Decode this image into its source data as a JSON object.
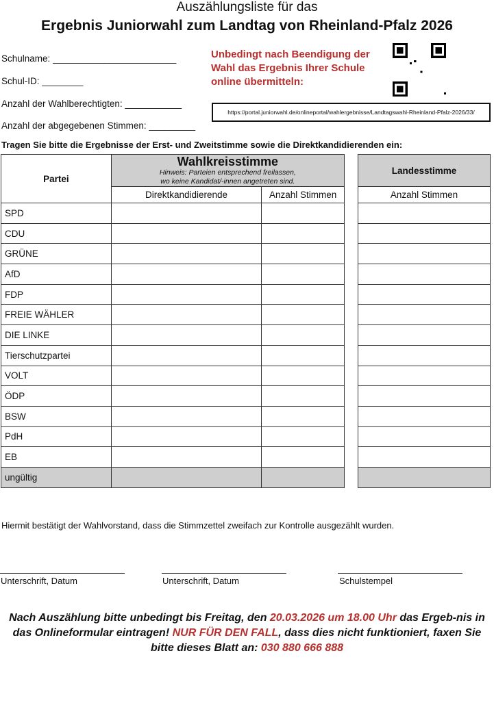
{
  "header": {
    "title_line1": "Auszählungsliste für das",
    "title_line2": "Ergebnis Juniorwahl zum Landtag von Rheinland-Pfalz 2026"
  },
  "fields": [
    {
      "label": "Schulname:",
      "blank": "________________________"
    },
    {
      "label": "Schul-ID:",
      "blank": "________"
    },
    {
      "label": "Anzahl der Wahlberechtigten:",
      "blank": "___________"
    },
    {
      "label": "Anzahl der abgegebenen Stimmen:",
      "blank": "_________"
    }
  ],
  "notice": {
    "line1": "Unbedingt nach Beendigung der",
    "line2": "Wahl das Ergebnis Ihrer Schule",
    "line3": "online übermitteln:"
  },
  "qr_icon": "qr-code",
  "url": "https://portal.juniorwahl.de/onlineportal/wahlergebnisse/Landtagswahl-Rheinland-Pfalz-2026/33/",
  "instruction": "Tragen Sie bitte die Ergebnisse der Erst- und Zweitstimme sowie die Direktkandidierenden ein:",
  "table": {
    "partei_header": "Partei",
    "wahlkreis_header": "Wahlkreisstimme",
    "hint_line1": "Hinweis: Parteien entsprechend freilassen,",
    "hint_line2": "wo keine Kandidat/-innen angetreten sind.",
    "col_direkt": "Direktkandidierende",
    "col_anzahl": "Anzahl Stimmen",
    "landes_header": "Landesstimme",
    "col_landes_anzahl": "Anzahl Stimmen",
    "parties": [
      "SPD",
      "CDU",
      "GRÜNE",
      "AfD",
      "FDP",
      "FREIE WÄHLER",
      "DIE LINKE",
      "Tierschutzpartei",
      "VOLT",
      "ÖDP",
      "BSW",
      "PdH",
      "EB",
      "ungültig"
    ],
    "gray_fill": "#cfcfcf"
  },
  "confirmation": "Hiermit bestätigt der Wahlvorstand, dass die Stimmzettel zweifach zur Kontrolle ausgezählt wurden.",
  "signatures": [
    "Unterschrift, Datum",
    "Unterschrift, Datum",
    "Schulstempel"
  ],
  "footer": {
    "p1": "Nach Auszählung bitte unbedingt bis Freitag, den ",
    "p2": "20.03.2026 um 18.00 Uhr",
    "p3": " das Ergeb-nis in das Onlineformular eintragen! ",
    "p4": "NUR FÜR DEN FALL",
    "p5": ", dass dies nicht funktioniert, faxen Sie bitte dieses Blatt an: ",
    "p6": "030 880 666 888"
  },
  "colors": {
    "accent_red": "#b8302e",
    "text": "#111111"
  }
}
